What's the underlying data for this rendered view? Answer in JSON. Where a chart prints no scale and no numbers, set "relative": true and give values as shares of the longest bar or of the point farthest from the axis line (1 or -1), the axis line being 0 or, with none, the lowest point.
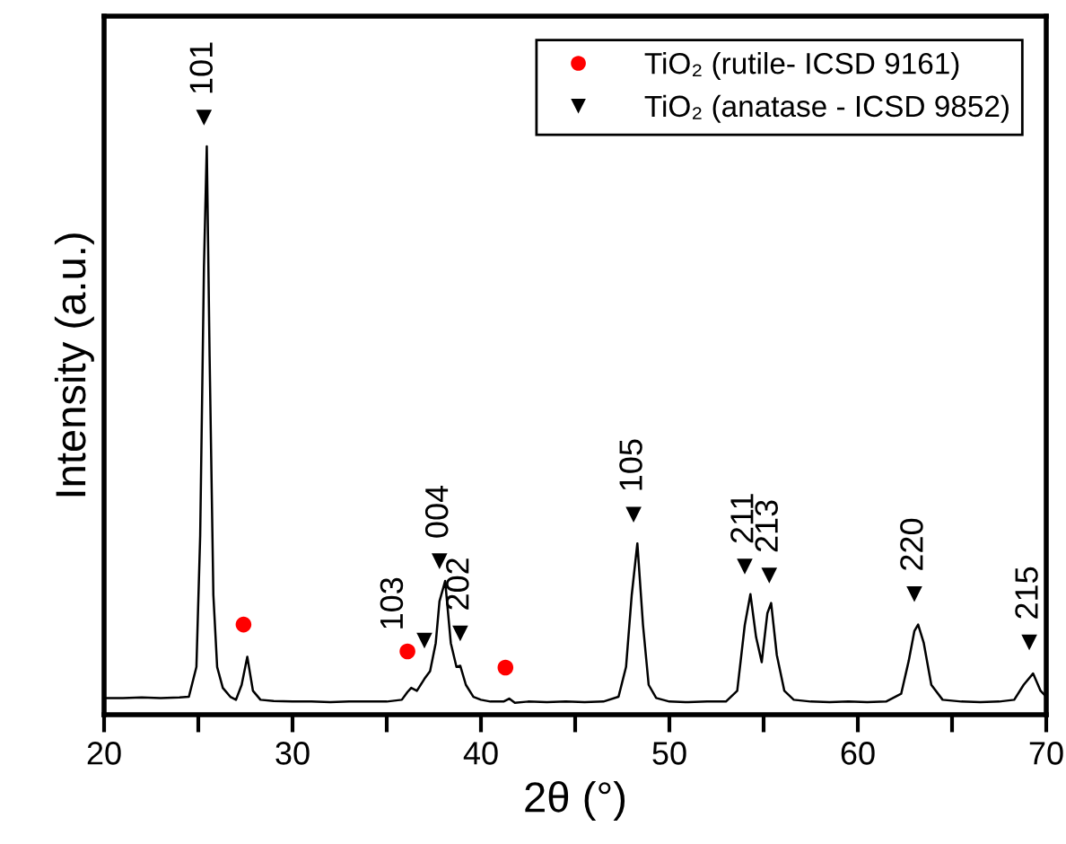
{
  "chart_data": {
    "type": "line",
    "relative": true,
    "xlabel": "2θ (°)",
    "ylabel": "Intensity (a.u.)",
    "xlim": [
      20,
      70
    ],
    "xticks": [
      20,
      {
        "value": 25,
        "label": null
      },
      30,
      {
        "value": 35,
        "label": null
      },
      40,
      {
        "value": 45,
        "label": null
      },
      50,
      {
        "value": 55,
        "label": null
      },
      60,
      {
        "value": 65,
        "label": null
      },
      70
    ],
    "grid": false,
    "legend": "top right",
    "series": [
      {
        "color": "#000000",
        "marker": "none",
        "line_style": "solid",
        "x": [
          20,
          21,
          22,
          23,
          24,
          24.5,
          24.9,
          25.1,
          25.3,
          25.45,
          25.6,
          25.8,
          26.0,
          26.3,
          26.7,
          27.0,
          27.3,
          27.6,
          27.9,
          28.3,
          29,
          30,
          31,
          32,
          33,
          34,
          35,
          35.8,
          36.1,
          36.3,
          36.6,
          37.0,
          37.3,
          37.6,
          37.8,
          38.1,
          38.4,
          38.7,
          38.9,
          39.2,
          39.6,
          40,
          40.5,
          41.2,
          41.5,
          41.8,
          42.5,
          43.5,
          44.5,
          45.5,
          46.5,
          47.3,
          47.7,
          48.0,
          48.3,
          48.6,
          48.9,
          49.3,
          50,
          51,
          52,
          53,
          53.6,
          54.0,
          54.3,
          54.6,
          54.9,
          55.2,
          55.4,
          55.7,
          56.1,
          56.6,
          57.5,
          58.5,
          59.5,
          60.5,
          61.5,
          62.3,
          62.7,
          63.0,
          63.2,
          63.5,
          63.9,
          64.5,
          65.5,
          66.5,
          67.5,
          68.3,
          68.8,
          69.3,
          69.7,
          70
        ],
        "values": [
          0.028,
          0.028,
          0.029,
          0.028,
          0.029,
          0.03,
          0.08,
          0.3,
          0.75,
          0.952,
          0.6,
          0.2,
          0.08,
          0.045,
          0.03,
          0.025,
          0.05,
          0.097,
          0.04,
          0.025,
          0.023,
          0.022,
          0.022,
          0.021,
          0.022,
          0.022,
          0.022,
          0.025,
          0.038,
          0.045,
          0.04,
          0.06,
          0.073,
          0.12,
          0.19,
          0.224,
          0.12,
          0.08,
          0.082,
          0.05,
          0.03,
          0.025,
          0.022,
          0.022,
          0.027,
          0.02,
          0.022,
          0.021,
          0.022,
          0.021,
          0.022,
          0.03,
          0.08,
          0.2,
          0.287,
          0.15,
          0.05,
          0.028,
          0.022,
          0.021,
          0.022,
          0.022,
          0.04,
          0.15,
          0.202,
          0.13,
          0.088,
          0.17,
          0.187,
          0.1,
          0.04,
          0.025,
          0.022,
          0.021,
          0.022,
          0.021,
          0.022,
          0.035,
          0.09,
          0.14,
          0.151,
          0.12,
          0.05,
          0.025,
          0.022,
          0.021,
          0.022,
          0.025,
          0.05,
          0.069,
          0.04,
          0.03
        ]
      },
      {
        "type": "scatter",
        "name": "TiO₂ (rutile- ICSD 9161)",
        "color": "#ff0000",
        "marker": "circle",
        "x": [
          27.4,
          36.1,
          41.3
        ],
        "values": [
          0.151,
          0.106,
          0.079
        ]
      },
      {
        "type": "scatter",
        "name": "TiO₂ (anatase - ICSD 9852)",
        "color": "#000000",
        "marker": "triangle",
        "x": [
          25.3,
          37.0,
          37.8,
          38.9,
          48.1,
          54.0,
          55.3,
          63.0,
          69.1
        ],
        "values": [
          1.0,
          0.124,
          0.257,
          0.136,
          0.335,
          0.248,
          0.233,
          0.202,
          0.121
        ]
      }
    ],
    "annotations": [
      {
        "text": "101",
        "x": 25.3,
        "y": 1.0
      },
      {
        "text": "103",
        "x": 37.0,
        "y": 0.124
      },
      {
        "text": "004",
        "x": 37.8,
        "y": 0.257
      },
      {
        "text": "202",
        "x": 38.9,
        "y": 0.136
      },
      {
        "text": "105",
        "x": 48.1,
        "y": 0.335
      },
      {
        "text": "211",
        "x": 54.0,
        "y": 0.248
      },
      {
        "text": "213",
        "x": 55.3,
        "y": 0.233
      },
      {
        "text": "220",
        "x": 63.0,
        "y": 0.202
      },
      {
        "text": "215",
        "x": 69.1,
        "y": 0.121
      }
    ]
  }
}
